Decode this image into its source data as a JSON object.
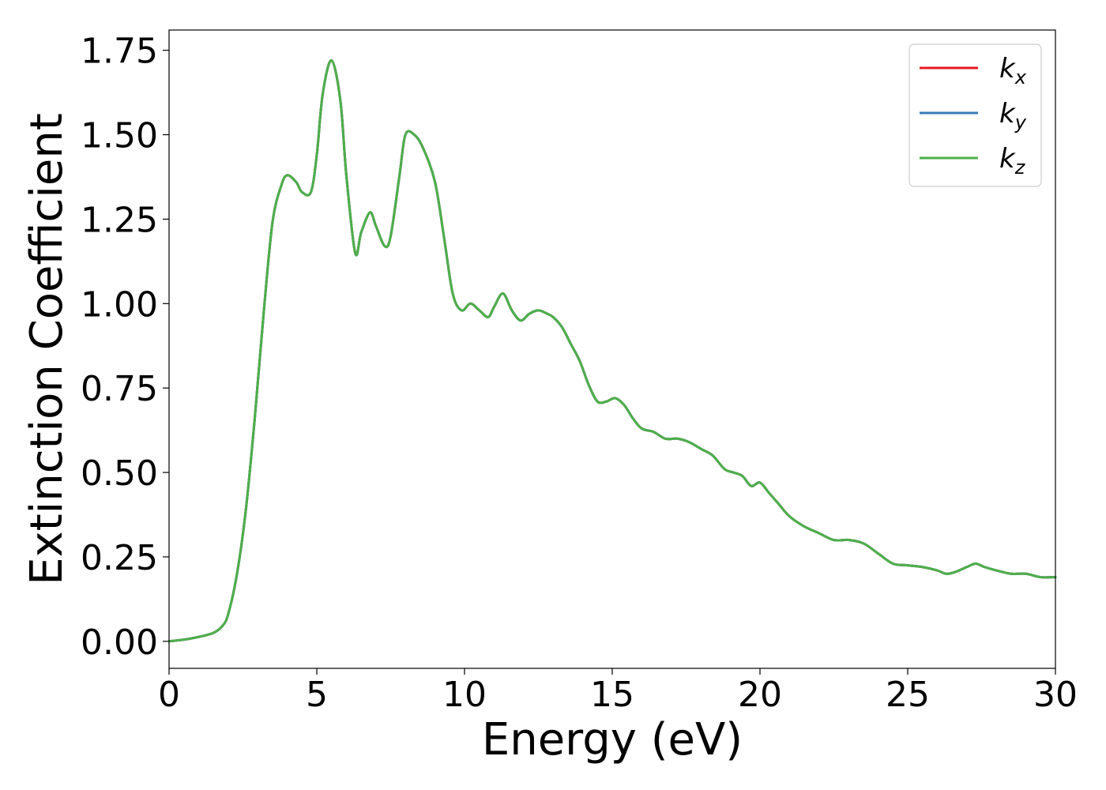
{
  "chart_data": {
    "type": "line",
    "title": "",
    "xlabel": "Energy (eV)",
    "ylabel": "Extinction Coefficient",
    "xlim": [
      0,
      30
    ],
    "ylim": [
      -0.08,
      1.81
    ],
    "xticks": [
      0,
      5,
      10,
      15,
      20,
      25,
      30
    ],
    "xtick_labels": [
      "0",
      "5",
      "10",
      "15",
      "20",
      "25",
      "30"
    ],
    "yticks": [
      0,
      0.25,
      0.5,
      0.75,
      1.0,
      1.25,
      1.5,
      1.75
    ],
    "ytick_labels": [
      "0.00",
      "0.25",
      "0.50",
      "0.75",
      "1.00",
      "1.25",
      "1.50",
      "1.75"
    ],
    "grid": false,
    "legend": {
      "position": "top-right"
    },
    "x": [
      0,
      0.5,
      1.0,
      1.5,
      1.8,
      2.0,
      2.3,
      2.6,
      2.9,
      3.2,
      3.5,
      3.8,
      4.0,
      4.3,
      4.5,
      4.8,
      5.0,
      5.2,
      5.5,
      5.8,
      6.0,
      6.3,
      6.5,
      6.8,
      7.0,
      7.3,
      7.5,
      7.8,
      8.0,
      8.3,
      8.6,
      9.0,
      9.3,
      9.6,
      9.9,
      10.2,
      10.5,
      10.8,
      11.0,
      11.3,
      11.6,
      11.9,
      12.2,
      12.5,
      12.8,
      13.0,
      13.3,
      13.6,
      13.9,
      14.2,
      14.5,
      14.8,
      15.1,
      15.4,
      15.7,
      16.0,
      16.4,
      16.8,
      17.2,
      17.6,
      18.0,
      18.4,
      18.8,
      19.1,
      19.4,
      19.7,
      20.0,
      20.3,
      20.6,
      21.0,
      21.5,
      22.0,
      22.5,
      23.0,
      23.5,
      24.0,
      24.5,
      25.0,
      25.5,
      26.0,
      26.3,
      26.6,
      27.0,
      27.3,
      27.6,
      28.0,
      28.5,
      29.0,
      29.5,
      30.0
    ],
    "series": [
      {
        "name": "k_x",
        "legend_base": "k",
        "legend_sub": "x",
        "color": "#e41a1c",
        "values": [
          0.0,
          0.005,
          0.013,
          0.025,
          0.045,
          0.08,
          0.2,
          0.39,
          0.66,
          0.97,
          1.24,
          1.35,
          1.38,
          1.36,
          1.33,
          1.33,
          1.44,
          1.62,
          1.72,
          1.6,
          1.38,
          1.15,
          1.21,
          1.27,
          1.23,
          1.17,
          1.2,
          1.38,
          1.5,
          1.5,
          1.46,
          1.36,
          1.2,
          1.03,
          0.98,
          1.0,
          0.98,
          0.96,
          0.99,
          1.03,
          0.98,
          0.95,
          0.97,
          0.98,
          0.97,
          0.96,
          0.93,
          0.88,
          0.83,
          0.76,
          0.71,
          0.71,
          0.72,
          0.7,
          0.66,
          0.63,
          0.62,
          0.6,
          0.6,
          0.59,
          0.57,
          0.55,
          0.51,
          0.5,
          0.49,
          0.46,
          0.47,
          0.44,
          0.41,
          0.37,
          0.34,
          0.32,
          0.3,
          0.3,
          0.29,
          0.26,
          0.23,
          0.225,
          0.22,
          0.21,
          0.2,
          0.205,
          0.22,
          0.23,
          0.22,
          0.21,
          0.2,
          0.2,
          0.19,
          0.19
        ]
      },
      {
        "name": "k_y",
        "legend_base": "k",
        "legend_sub": "y",
        "color": "#377eb8",
        "values": [
          0.0,
          0.005,
          0.013,
          0.025,
          0.045,
          0.08,
          0.2,
          0.39,
          0.66,
          0.97,
          1.24,
          1.35,
          1.38,
          1.36,
          1.33,
          1.33,
          1.44,
          1.62,
          1.72,
          1.6,
          1.38,
          1.15,
          1.21,
          1.27,
          1.23,
          1.17,
          1.2,
          1.38,
          1.5,
          1.5,
          1.46,
          1.36,
          1.2,
          1.03,
          0.98,
          1.0,
          0.98,
          0.96,
          0.99,
          1.03,
          0.98,
          0.95,
          0.97,
          0.98,
          0.97,
          0.96,
          0.93,
          0.88,
          0.83,
          0.76,
          0.71,
          0.71,
          0.72,
          0.7,
          0.66,
          0.63,
          0.62,
          0.6,
          0.6,
          0.59,
          0.57,
          0.55,
          0.51,
          0.5,
          0.49,
          0.46,
          0.47,
          0.44,
          0.41,
          0.37,
          0.34,
          0.32,
          0.3,
          0.3,
          0.29,
          0.26,
          0.23,
          0.225,
          0.22,
          0.21,
          0.2,
          0.205,
          0.22,
          0.23,
          0.22,
          0.21,
          0.2,
          0.2,
          0.19,
          0.19
        ]
      },
      {
        "name": "k_z",
        "legend_base": "k",
        "legend_sub": "z",
        "color": "#4daf4a",
        "values": [
          0.0,
          0.005,
          0.013,
          0.025,
          0.045,
          0.08,
          0.2,
          0.39,
          0.66,
          0.97,
          1.24,
          1.35,
          1.38,
          1.36,
          1.33,
          1.33,
          1.44,
          1.62,
          1.72,
          1.6,
          1.38,
          1.15,
          1.21,
          1.27,
          1.23,
          1.17,
          1.2,
          1.38,
          1.5,
          1.5,
          1.46,
          1.36,
          1.2,
          1.03,
          0.98,
          1.0,
          0.98,
          0.96,
          0.99,
          1.03,
          0.98,
          0.95,
          0.97,
          0.98,
          0.97,
          0.96,
          0.93,
          0.88,
          0.83,
          0.76,
          0.71,
          0.71,
          0.72,
          0.7,
          0.66,
          0.63,
          0.62,
          0.6,
          0.6,
          0.59,
          0.57,
          0.55,
          0.51,
          0.5,
          0.49,
          0.46,
          0.47,
          0.44,
          0.41,
          0.37,
          0.34,
          0.32,
          0.3,
          0.3,
          0.29,
          0.26,
          0.23,
          0.225,
          0.22,
          0.21,
          0.2,
          0.205,
          0.22,
          0.23,
          0.22,
          0.21,
          0.2,
          0.2,
          0.19,
          0.19
        ]
      }
    ]
  }
}
